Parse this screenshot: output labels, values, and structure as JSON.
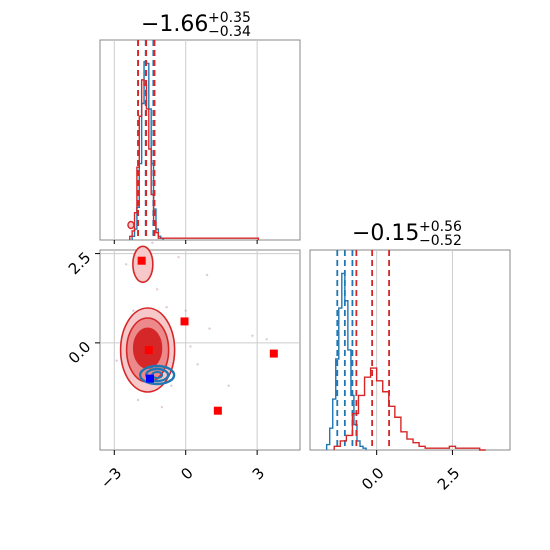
{
  "chart_data": {
    "type": "corner",
    "parameters": [
      "p0",
      "p1"
    ],
    "titles": [
      {
        "value": "−1.66",
        "sup": "+0.35",
        "sub": "−0.34"
      },
      {
        "value": "−0.15",
        "sup": "+0.56",
        "sub": "−0.52"
      }
    ],
    "axes": {
      "p0": {
        "range": [
          -3.6,
          4.8
        ],
        "ticks": [
          -3,
          0,
          3
        ],
        "tick_labels": [
          "−3",
          "0",
          "3"
        ]
      },
      "p1": {
        "range": [
          -3.0,
          2.6
        ],
        "ticks": [
          2.5,
          0.0
        ],
        "tick_labels": [
          "2.5",
          "0.0"
        ]
      },
      "p1_hist": {
        "range": [
          -2.2,
          4.4
        ],
        "ticks": [
          0.0,
          2.5
        ],
        "tick_labels": [
          "0.0",
          "2.5"
        ]
      }
    },
    "grid": true,
    "series": [
      {
        "color": "#1f77b4",
        "marginal_p0": {
          "centers": [
            -2.2,
            -2.1,
            -2.0,
            -1.9,
            -1.8,
            -1.7,
            -1.6,
            -1.5,
            -1.4,
            -1.3,
            -1.2,
            -1.1,
            -1.0
          ],
          "counts": [
            0.02,
            0.06,
            0.18,
            0.42,
            0.75,
            0.98,
            0.97,
            0.72,
            0.42,
            0.17,
            0.06,
            0.02,
            0.01
          ]
        },
        "marginal_p1": {
          "centers": [
            -1.6,
            -1.5,
            -1.4,
            -1.3,
            -1.2,
            -1.1,
            -1.0,
            -0.9,
            -0.8,
            -0.7,
            -0.6,
            -0.5,
            -0.4
          ],
          "counts": [
            0.03,
            0.12,
            0.28,
            0.5,
            0.78,
            0.97,
            0.82,
            0.55,
            0.3,
            0.14,
            0.05,
            0.02,
            0.01
          ]
        },
        "quantile_lines_p0": [
          -2.0,
          -1.68,
          -1.36
        ],
        "quantile_lines_p1": [
          -1.3,
          -1.05,
          -0.8
        ],
        "contour_center": [
          -1.2,
          -0.9
        ]
      },
      {
        "color": "#d62728",
        "marginal_p0": {
          "centers": [
            -2.3,
            -2.2,
            -2.1,
            -2.0,
            -1.9,
            -1.8,
            -1.7,
            -1.6,
            -1.5,
            -1.4,
            -1.3,
            -1.2,
            -1.1,
            3.0
          ],
          "counts": [
            0.02,
            0.05,
            0.15,
            0.4,
            0.68,
            0.88,
            0.85,
            0.72,
            0.5,
            0.25,
            0.1,
            0.04,
            0.01,
            0.01
          ]
        },
        "marginal_p1": {
          "centers": [
            -1.3,
            -1.1,
            -0.9,
            -0.7,
            -0.5,
            -0.3,
            -0.1,
            0.1,
            0.3,
            0.5,
            0.7,
            0.9,
            1.1,
            1.3,
            1.5,
            1.7,
            1.9,
            2.1,
            2.3,
            2.5,
            2.7,
            2.9,
            3.1,
            3.3,
            3.5
          ],
          "counts": [
            0.02,
            0.05,
            0.08,
            0.2,
            0.3,
            0.4,
            0.45,
            0.38,
            0.32,
            0.24,
            0.18,
            0.1,
            0.06,
            0.04,
            0.02,
            0.01,
            0.01,
            0.01,
            0.01,
            0.02,
            0.01,
            0.01,
            0.01,
            0.01,
            0.0
          ]
        },
        "quantile_lines_p0": [
          -2.0,
          -1.66,
          -1.31
        ],
        "quantile_lines_p1": [
          -0.67,
          -0.15,
          0.41
        ],
        "contour_center": [
          -1.6,
          -0.2
        ]
      }
    ],
    "markers": [
      {
        "x": -1.85,
        "y": 2.3,
        "color": "#ff0000"
      },
      {
        "x": -0.05,
        "y": 0.6,
        "color": "#ff0000"
      },
      {
        "x": -1.55,
        "y": -0.2,
        "color": "#ff0000"
      },
      {
        "x": -1.5,
        "y": -1.0,
        "color": "#0000ff"
      },
      {
        "x": 1.35,
        "y": -1.9,
        "color": "#ff0000"
      },
      {
        "x": 3.7,
        "y": -0.3,
        "color": "#ff0000"
      }
    ]
  }
}
